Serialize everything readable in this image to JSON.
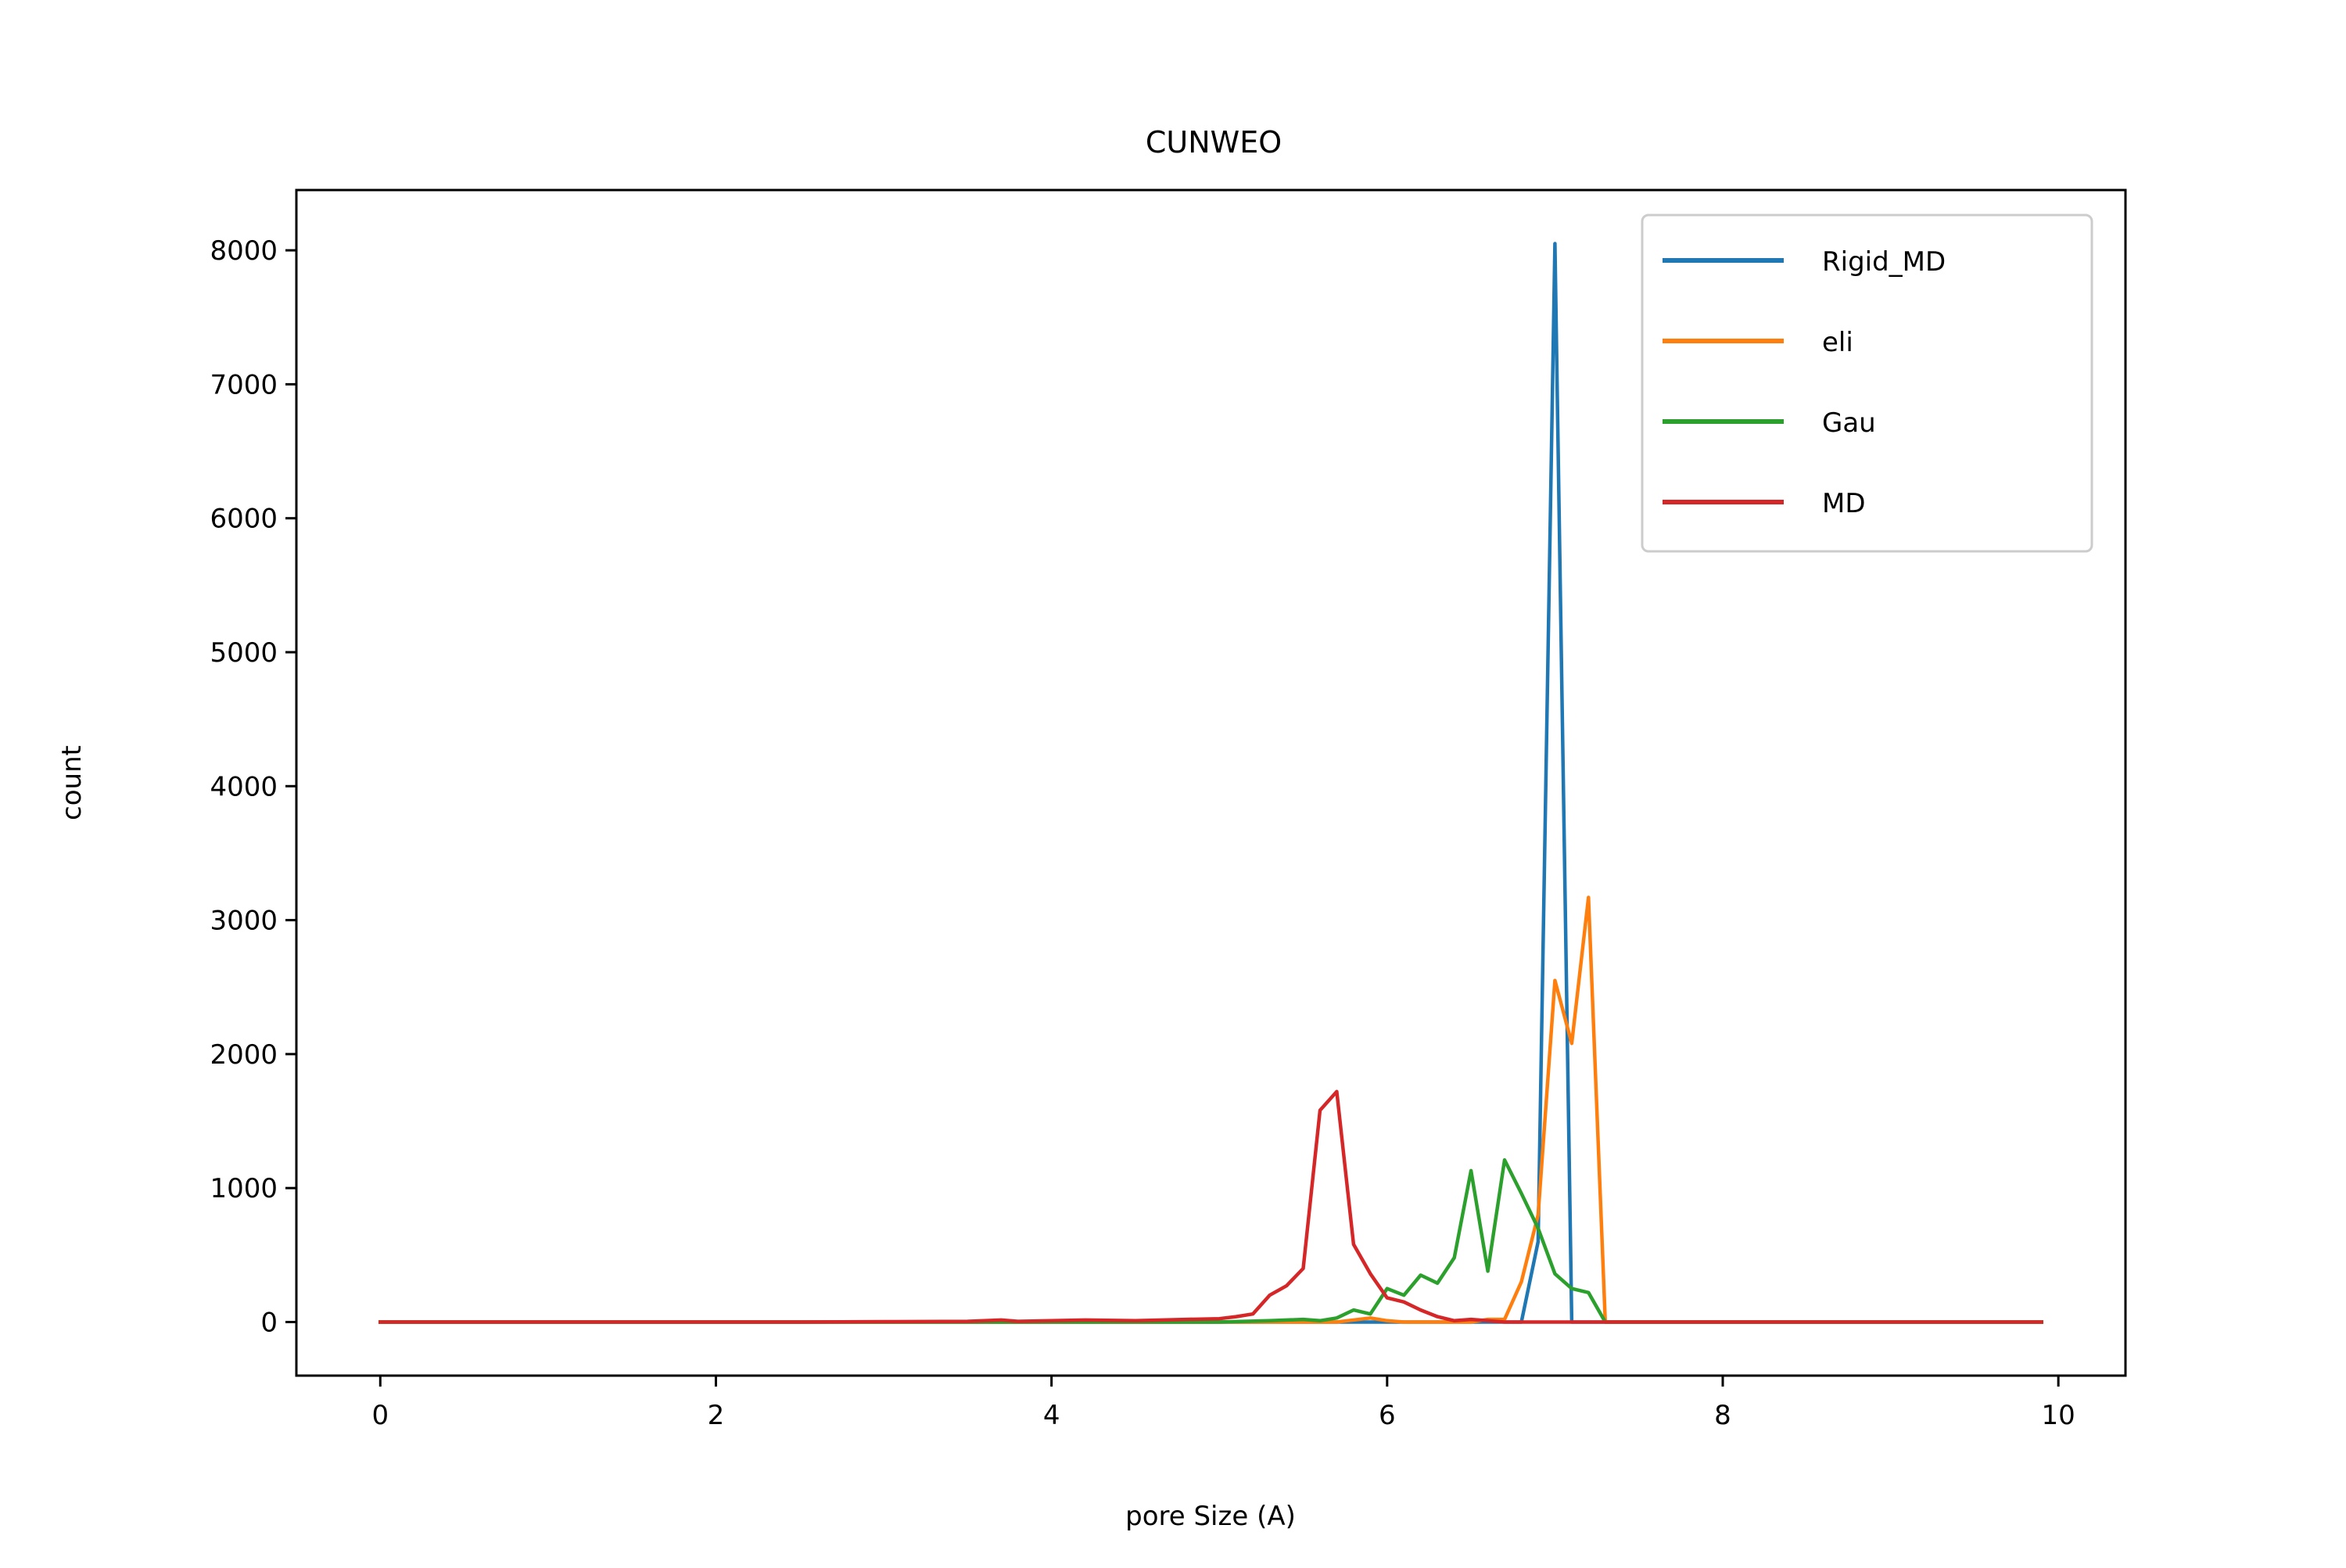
{
  "chart_data": {
    "type": "line",
    "title": "CUNWEO",
    "xlabel": "pore Size (A)",
    "ylabel": "count",
    "xlim": [
      -0.5,
      10.4
    ],
    "ylim": [
      -400,
      8450
    ],
    "xticks": [
      0,
      2,
      4,
      6,
      8,
      10
    ],
    "yticks": [
      0,
      1000,
      2000,
      3000,
      4000,
      5000,
      6000,
      7000,
      8000
    ],
    "xtick_labels": [
      "0",
      "2",
      "4",
      "6",
      "8",
      "10"
    ],
    "ytick_labels": [
      "0",
      "1000",
      "2000",
      "3000",
      "4000",
      "5000",
      "6000",
      "7000",
      "8000"
    ],
    "grid": false,
    "legend_position": "top-right",
    "series": [
      {
        "name": "Rigid_MD",
        "color": "#1f77b4",
        "points": [
          [
            0,
            0
          ],
          [
            6.7,
            0
          ],
          [
            6.8,
            0
          ],
          [
            6.9,
            600
          ],
          [
            7.0,
            8050
          ],
          [
            7.1,
            0
          ],
          [
            7.2,
            0
          ],
          [
            9.9,
            0
          ]
        ]
      },
      {
        "name": "eli",
        "color": "#ff7f0e",
        "points": [
          [
            0,
            0
          ],
          [
            5.5,
            0
          ],
          [
            5.7,
            0
          ],
          [
            5.9,
            30
          ],
          [
            6.0,
            10
          ],
          [
            6.1,
            0
          ],
          [
            6.5,
            0
          ],
          [
            6.6,
            20
          ],
          [
            6.7,
            20
          ],
          [
            6.8,
            300
          ],
          [
            6.9,
            800
          ],
          [
            7.0,
            2550
          ],
          [
            7.1,
            2080
          ],
          [
            7.2,
            3170
          ],
          [
            7.3,
            0
          ],
          [
            9.9,
            0
          ]
        ]
      },
      {
        "name": "Gau",
        "color": "#2ca02c",
        "points": [
          [
            0,
            0
          ],
          [
            5.0,
            0
          ],
          [
            5.3,
            10
          ],
          [
            5.5,
            20
          ],
          [
            5.6,
            10
          ],
          [
            5.7,
            30
          ],
          [
            5.8,
            90
          ],
          [
            5.9,
            60
          ],
          [
            6.0,
            250
          ],
          [
            6.1,
            200
          ],
          [
            6.2,
            350
          ],
          [
            6.3,
            290
          ],
          [
            6.4,
            480
          ],
          [
            6.5,
            1130
          ],
          [
            6.6,
            380
          ],
          [
            6.7,
            1210
          ],
          [
            6.8,
            960
          ],
          [
            6.9,
            700
          ],
          [
            7.0,
            360
          ],
          [
            7.1,
            250
          ],
          [
            7.2,
            220
          ],
          [
            7.3,
            0
          ],
          [
            9.9,
            0
          ]
        ]
      },
      {
        "name": "MD",
        "color": "#d62728",
        "points": [
          [
            0,
            0
          ],
          [
            2.5,
            0
          ],
          [
            3.0,
            3
          ],
          [
            3.5,
            5
          ],
          [
            3.7,
            15
          ],
          [
            3.8,
            5
          ],
          [
            4.0,
            10
          ],
          [
            4.2,
            15
          ],
          [
            4.5,
            10
          ],
          [
            4.8,
            20
          ],
          [
            5.0,
            25
          ],
          [
            5.1,
            40
          ],
          [
            5.2,
            60
          ],
          [
            5.3,
            200
          ],
          [
            5.4,
            270
          ],
          [
            5.5,
            400
          ],
          [
            5.6,
            1580
          ],
          [
            5.7,
            1720
          ],
          [
            5.8,
            580
          ],
          [
            5.9,
            360
          ],
          [
            6.0,
            180
          ],
          [
            6.1,
            150
          ],
          [
            6.2,
            90
          ],
          [
            6.3,
            40
          ],
          [
            6.4,
            10
          ],
          [
            6.5,
            20
          ],
          [
            6.6,
            10
          ],
          [
            6.7,
            0
          ],
          [
            9.9,
            0
          ]
        ]
      }
    ]
  }
}
